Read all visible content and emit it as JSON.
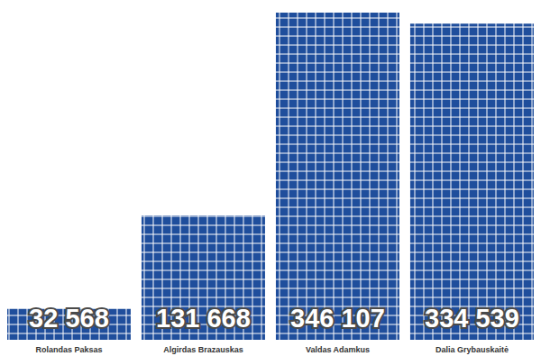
{
  "chart_data": {
    "type": "bar",
    "categories": [
      "Rolandas Paksas",
      "Algirdas Brazauskas",
      "Valdas Adamkus",
      "Dalia Grybauskaitė"
    ],
    "values": [
      32568,
      131668,
      346107,
      334539
    ],
    "value_labels": [
      "32 568",
      "131 668",
      "346 107",
      "334 539"
    ],
    "color": "#1f4e9c",
    "ylim": [
      0,
      346107
    ],
    "yticks": [
      0,
      346107
    ],
    "tick_labels": "x",
    "data_labels": true
  }
}
